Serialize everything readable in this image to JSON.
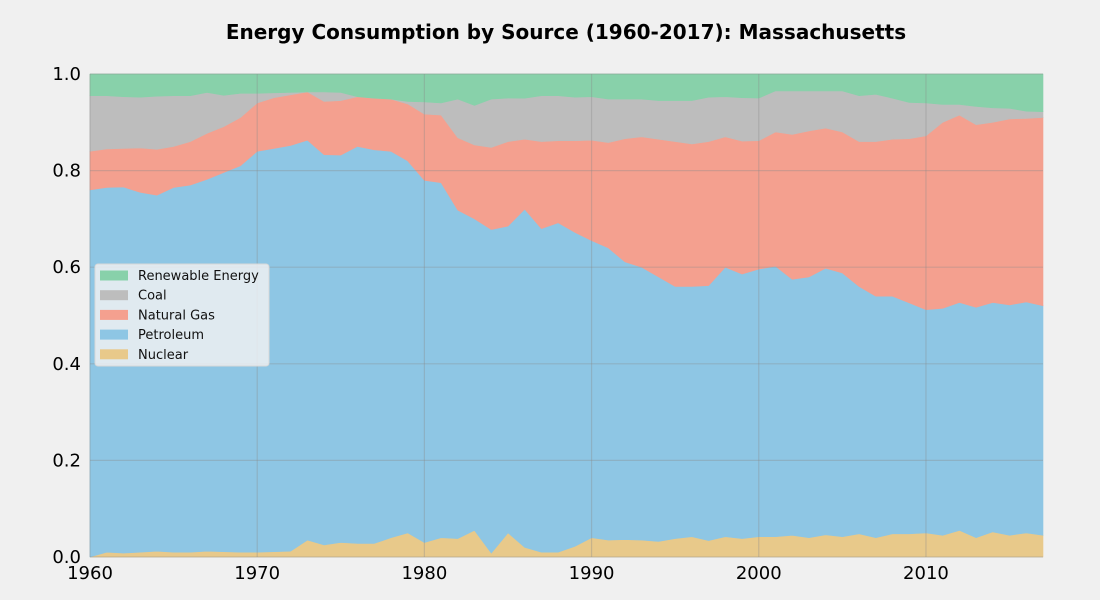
{
  "chart_data": {
    "type": "area",
    "stacked": true,
    "title": "Energy Consumption by Source (1960-2017): Massachusetts",
    "xlabel": "",
    "ylabel": "",
    "xlim": [
      1960,
      2017
    ],
    "ylim": [
      0,
      1.0
    ],
    "xticks": [
      1960,
      1970,
      1980,
      1990,
      2000,
      2010
    ],
    "yticks": [
      0.0,
      0.2,
      0.4,
      0.6,
      0.8,
      1.0
    ],
    "grid": true,
    "legend_position": "center-left",
    "x": [
      1960,
      1961,
      1962,
      1963,
      1964,
      1965,
      1966,
      1967,
      1968,
      1969,
      1970,
      1971,
      1972,
      1973,
      1974,
      1975,
      1976,
      1977,
      1978,
      1979,
      1980,
      1981,
      1982,
      1983,
      1984,
      1985,
      1986,
      1987,
      1988,
      1989,
      1990,
      1991,
      1992,
      1993,
      1994,
      1995,
      1996,
      1997,
      1998,
      1999,
      2000,
      2001,
      2002,
      2003,
      2004,
      2005,
      2006,
      2007,
      2008,
      2009,
      2010,
      2011,
      2012,
      2013,
      2014,
      2015,
      2016,
      2017
    ],
    "series": [
      {
        "name": "Nuclear",
        "color": "#e8c98a",
        "values": [
          0.0,
          0.01,
          0.008,
          0.01,
          0.012,
          0.01,
          0.01,
          0.012,
          0.011,
          0.01,
          0.01,
          0.011,
          0.012,
          0.035,
          0.025,
          0.03,
          0.028,
          0.028,
          0.04,
          0.05,
          0.03,
          0.04,
          0.038,
          0.055,
          0.008,
          0.05,
          0.02,
          0.01,
          0.01,
          0.022,
          0.04,
          0.035,
          0.036,
          0.035,
          0.032,
          0.038,
          0.042,
          0.034,
          0.042,
          0.038,
          0.042,
          0.042,
          0.045,
          0.04,
          0.046,
          0.042,
          0.048,
          0.04,
          0.048,
          0.048,
          0.05,
          0.045,
          0.055,
          0.04,
          0.052,
          0.045,
          0.05,
          0.045
        ]
      },
      {
        "name": "Petroleum",
        "color": "#8ec6e4",
        "values": [
          0.76,
          0.755,
          0.758,
          0.745,
          0.737,
          0.755,
          0.76,
          0.77,
          0.785,
          0.8,
          0.83,
          0.835,
          0.84,
          0.828,
          0.808,
          0.802,
          0.822,
          0.815,
          0.8,
          0.77,
          0.75,
          0.735,
          0.68,
          0.645,
          0.67,
          0.635,
          0.7,
          0.67,
          0.682,
          0.65,
          0.615,
          0.605,
          0.575,
          0.565,
          0.548,
          0.522,
          0.518,
          0.528,
          0.558,
          0.548,
          0.554,
          0.56,
          0.53,
          0.54,
          0.552,
          0.546,
          0.512,
          0.5,
          0.492,
          0.478,
          0.462,
          0.47,
          0.472,
          0.477,
          0.475,
          0.477,
          0.478,
          0.475
        ]
      },
      {
        "name": "Natural Gas",
        "color": "#f4a08f",
        "values": [
          0.08,
          0.08,
          0.08,
          0.092,
          0.095,
          0.085,
          0.09,
          0.095,
          0.095,
          0.1,
          0.1,
          0.105,
          0.105,
          0.1,
          0.11,
          0.113,
          0.103,
          0.107,
          0.108,
          0.118,
          0.137,
          0.14,
          0.15,
          0.153,
          0.17,
          0.175,
          0.145,
          0.18,
          0.17,
          0.19,
          0.208,
          0.218,
          0.255,
          0.27,
          0.285,
          0.3,
          0.295,
          0.298,
          0.27,
          0.275,
          0.266,
          0.278,
          0.3,
          0.302,
          0.29,
          0.292,
          0.3,
          0.32,
          0.325,
          0.34,
          0.36,
          0.385,
          0.388,
          0.378,
          0.373,
          0.385,
          0.38,
          0.39
        ]
      },
      {
        "name": "Coal",
        "color": "#bdbdbd",
        "values": [
          0.115,
          0.11,
          0.107,
          0.105,
          0.11,
          0.105,
          0.095,
          0.085,
          0.065,
          0.05,
          0.02,
          0.01,
          0.005,
          0.0,
          0.02,
          0.017,
          0.0,
          0.0,
          0.0,
          0.005,
          0.025,
          0.025,
          0.08,
          0.082,
          0.1,
          0.09,
          0.085,
          0.095,
          0.093,
          0.09,
          0.09,
          0.09,
          0.082,
          0.078,
          0.08,
          0.085,
          0.09,
          0.092,
          0.083,
          0.09,
          0.088,
          0.085,
          0.09,
          0.083,
          0.077,
          0.085,
          0.095,
          0.098,
          0.085,
          0.075,
          0.068,
          0.037,
          0.022,
          0.038,
          0.03,
          0.022,
          0.015,
          0.012
        ]
      },
      {
        "name": "Renewable Energy",
        "color": "#88d1aa",
        "values": [
          0.045,
          0.045,
          0.047,
          0.048,
          0.046,
          0.045,
          0.045,
          0.038,
          0.044,
          0.04,
          0.04,
          0.039,
          0.038,
          0.037,
          0.037,
          0.038,
          0.047,
          0.05,
          0.052,
          0.057,
          0.058,
          0.06,
          0.052,
          0.065,
          0.052,
          0.05,
          0.05,
          0.045,
          0.045,
          0.048,
          0.047,
          0.052,
          0.052,
          0.052,
          0.055,
          0.055,
          0.055,
          0.048,
          0.047,
          0.049,
          0.05,
          0.035,
          0.035,
          0.035,
          0.035,
          0.035,
          0.045,
          0.042,
          0.05,
          0.059,
          0.06,
          0.063,
          0.063,
          0.067,
          0.07,
          0.071,
          0.077,
          0.078
        ]
      }
    ]
  }
}
